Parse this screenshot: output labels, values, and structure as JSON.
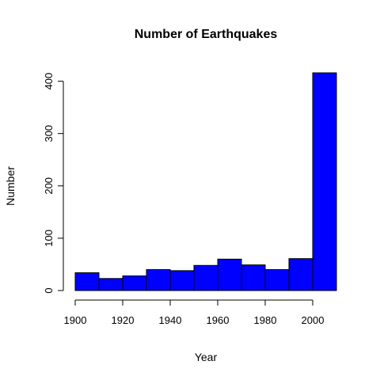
{
  "chart_data": {
    "type": "bar",
    "title": "Number of Earthquakes",
    "xlabel": "Year",
    "ylabel": "Number",
    "bin_edges": [
      1900,
      1910,
      1920,
      1930,
      1940,
      1950,
      1960,
      1970,
      1980,
      1990,
      2000,
      2010
    ],
    "values": [
      34,
      23,
      28,
      40,
      38,
      48,
      60,
      49,
      40,
      61,
      416
    ],
    "xlim": [
      1900,
      2010
    ],
    "ylim": [
      0,
      416
    ],
    "x_ticks": [
      "1900",
      "1920",
      "1940",
      "1960",
      "1980",
      "2000"
    ],
    "y_ticks": [
      "0",
      "100",
      "200",
      "300",
      "400"
    ],
    "grid": false,
    "bar_color": "#0000ff",
    "bar_border_color": "#000000"
  }
}
